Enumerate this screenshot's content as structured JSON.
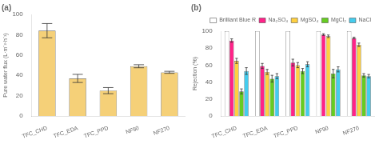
{
  "chart_data": [
    {
      "type": "bar",
      "title": "(a)",
      "categories": [
        "TFC_CHD",
        "TFC_EDA",
        "TFC_PPD",
        "NF90",
        "NF270"
      ],
      "values": [
        84,
        37,
        25,
        49,
        43
      ],
      "errors": [
        7,
        4,
        3,
        1.5,
        1
      ],
      "color": "#F5D078",
      "ylabel": "Pure water flux (L·m⁻²·h⁻¹)",
      "ylim": [
        0,
        100
      ],
      "yticks": [
        0,
        20,
        40,
        60,
        80,
        100
      ],
      "grid": false
    },
    {
      "type": "bar",
      "title": "(b)",
      "categories": [
        "TFC_CHD",
        "TFC_EDA",
        "TFC_PPD",
        "NF90",
        "NF270"
      ],
      "series": [
        {
          "name": "Brilliant Blue R",
          "color": "#FFFFFF",
          "values": [
            100,
            100,
            100,
            100,
            100
          ],
          "errors": [
            0,
            0,
            0,
            0,
            0
          ]
        },
        {
          "name": "Na₂SO₄",
          "color": "#FF2288",
          "values": [
            89,
            59,
            63,
            96,
            92
          ],
          "errors": [
            2,
            3,
            4,
            1,
            1
          ]
        },
        {
          "name": "MgSO₄",
          "color": "#FFD040",
          "values": [
            65,
            52,
            60,
            94,
            84
          ],
          "errors": [
            3,
            3,
            3,
            1.5,
            2
          ]
        },
        {
          "name": "MgCl₂",
          "color": "#66CC22",
          "values": [
            29,
            44,
            53,
            50,
            48
          ],
          "errors": [
            3,
            4,
            3,
            5,
            2
          ]
        },
        {
          "name": "NaCl",
          "color": "#44CCEE",
          "values": [
            53,
            47,
            61,
            55,
            47
          ],
          "errors": [
            4,
            3,
            3,
            3,
            2
          ]
        }
      ],
      "ylabel": "Rejection (%)",
      "ylim": [
        0,
        100
      ],
      "yticks": [
        0,
        20,
        40,
        60,
        80,
        100
      ],
      "grid": false,
      "legend": "top"
    }
  ]
}
